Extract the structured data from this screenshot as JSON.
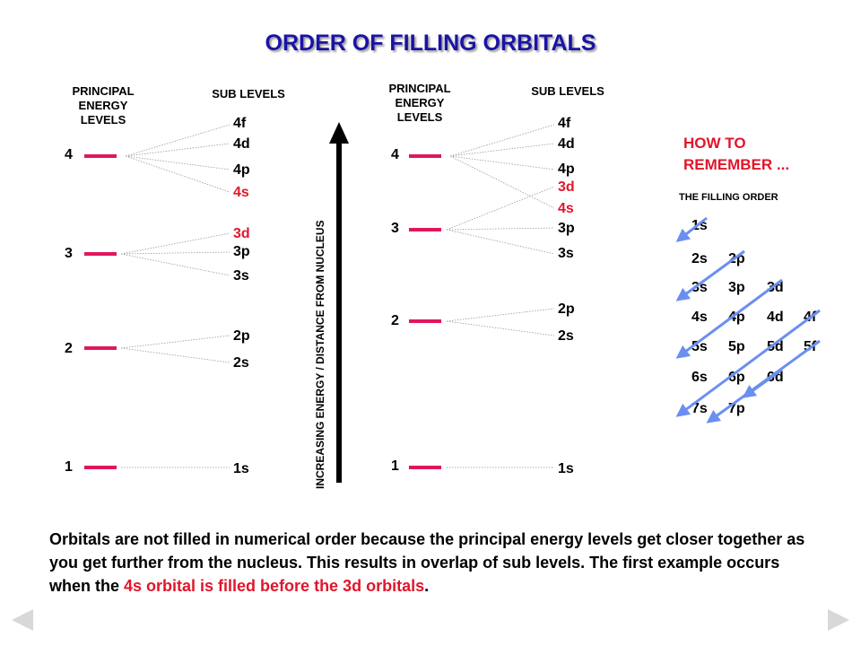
{
  "title": "ORDER OF FILLING ORBITALS",
  "left_diagram": {
    "principal_header": "PRINCIPAL\nENERGY\nLEVELS",
    "sub_header": "SUB LEVELS",
    "levels": [
      "4",
      "3",
      "2",
      "1"
    ],
    "sublevels": [
      "4f",
      "4d",
      "4p",
      "4s",
      "3d",
      "3p",
      "3s",
      "2p",
      "2s",
      "1s"
    ]
  },
  "axis_label": "INCREASING ENERGY / DISTANCE FROM NUCLEUS",
  "right_diagram": {
    "principal_header": "PRINCIPAL\nENERGY\nLEVELS",
    "sub_header": "SUB LEVELS",
    "levels": [
      "4",
      "3",
      "2",
      "1"
    ],
    "sublevels": [
      "4f",
      "4d",
      "4p",
      "3d",
      "4s",
      "3p",
      "3s",
      "2p",
      "2s",
      "1s"
    ]
  },
  "how_to": {
    "heading_line1": "HOW TO",
    "heading_line2": "REMEMBER ...",
    "subheading": "THE FILLING ORDER",
    "rows": [
      [
        "1s"
      ],
      [
        "2s",
        "2p"
      ],
      [
        "3s",
        "3p",
        "3d"
      ],
      [
        "4s",
        "4p",
        "4d",
        "4f"
      ],
      [
        "5s",
        "5p",
        "5d",
        "5f"
      ],
      [
        "6s",
        "6p",
        "6d"
      ],
      [
        "7s",
        "7p"
      ]
    ]
  },
  "paragraph": {
    "before": "Orbitals are not filled in numerical order because the principal energy levels get closer together as you get further from the nucleus.  This results in overlap of sub levels. The first example occurs when the ",
    "highlight": "4s orbital is filled before the 3d orbitals",
    "after": "."
  },
  "colors": {
    "title": "#1a13a6",
    "accent_red": "#e0162b",
    "level_bar": "#e0165e",
    "arrow_blue": "#6b8ff0",
    "nav_arrow": "#d8d8d8"
  },
  "icons": {
    "prev": "triangle-left-icon",
    "next": "triangle-right-icon",
    "axis_arrow": "up-arrow-icon"
  }
}
